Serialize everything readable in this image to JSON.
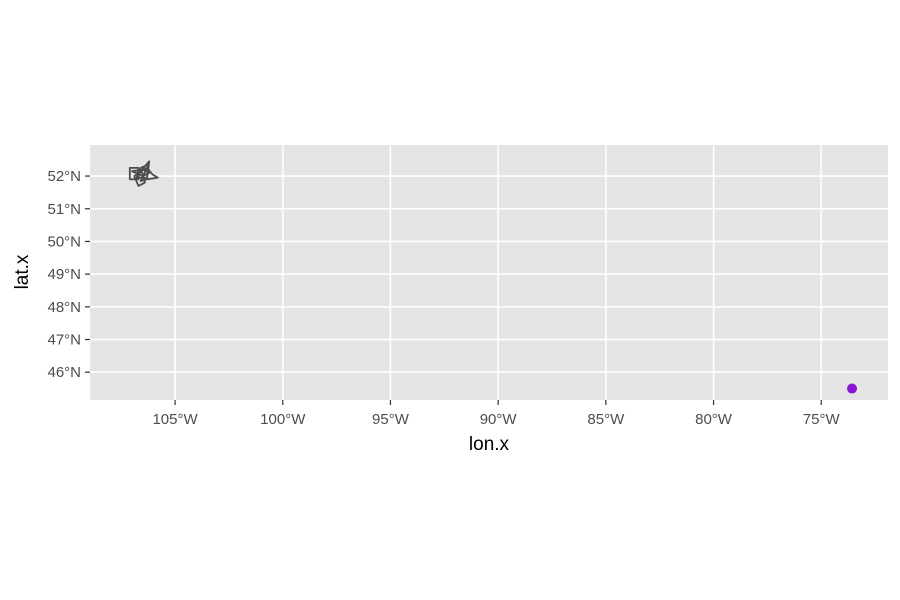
{
  "colors": {
    "panel_background": "#e5e5e5",
    "grid": "#ffffff",
    "outline": "#4d4d4d",
    "point": "#8a16d6",
    "tick_text": "#4d4d4d"
  },
  "chart_data": {
    "type": "map",
    "xlabel": "lon.x",
    "ylabel": "lat.x",
    "xlim": [
      -108.95,
      -71.9
    ],
    "ylim": [
      45.15,
      52.95
    ],
    "x_ticks": [
      {
        "value": -105,
        "label": "105°W"
      },
      {
        "value": -100,
        "label": "100°W"
      },
      {
        "value": -95,
        "label": "95°W"
      },
      {
        "value": -90,
        "label": "90°W"
      },
      {
        "value": -85,
        "label": "85°W"
      },
      {
        "value": -80,
        "label": "80°W"
      },
      {
        "value": -75,
        "label": "75°W"
      }
    ],
    "y_ticks": [
      {
        "value": 46,
        "label": "46°N"
      },
      {
        "value": 47,
        "label": "47°N"
      },
      {
        "value": 48,
        "label": "48°N"
      },
      {
        "value": 49,
        "label": "49°N"
      },
      {
        "value": 50,
        "label": "50°N"
      },
      {
        "value": 51,
        "label": "51°N"
      },
      {
        "value": 52,
        "label": "52°N"
      }
    ],
    "grid": true,
    "points": [
      {
        "lon": -73.57,
        "lat": 45.5
      }
    ],
    "outlines": [
      [
        [
          -107.1,
          51.9
        ],
        [
          -107.1,
          52.25
        ],
        [
          -106.7,
          52.25
        ],
        [
          -106.7,
          51.9
        ],
        [
          -107.1,
          51.9
        ]
      ],
      [
        [
          -106.8,
          51.95
        ],
        [
          -106.4,
          52.3
        ],
        [
          -106.2,
          52.45
        ],
        [
          -106.3,
          51.95
        ],
        [
          -106.8,
          51.95
        ]
      ],
      [
        [
          -106.6,
          51.85
        ],
        [
          -106.3,
          52.25
        ],
        [
          -106.05,
          52.05
        ],
        [
          -105.8,
          51.95
        ],
        [
          -106.3,
          51.9
        ],
        [
          -106.6,
          51.85
        ]
      ],
      [
        [
          -106.9,
          52.0
        ],
        [
          -106.7,
          51.7
        ],
        [
          -106.4,
          51.8
        ],
        [
          -106.55,
          52.15
        ],
        [
          -106.9,
          52.0
        ]
      ],
      [
        [
          -107.0,
          52.15
        ],
        [
          -106.5,
          52.2
        ],
        [
          -106.2,
          52.1
        ],
        [
          -106.5,
          52.0
        ],
        [
          -107.0,
          52.15
        ]
      ],
      [
        [
          -106.75,
          52.1
        ],
        [
          -106.3,
          52.25
        ],
        [
          -106.25,
          52.35
        ],
        [
          -106.6,
          52.25
        ],
        [
          -106.75,
          52.1
        ]
      ]
    ]
  }
}
